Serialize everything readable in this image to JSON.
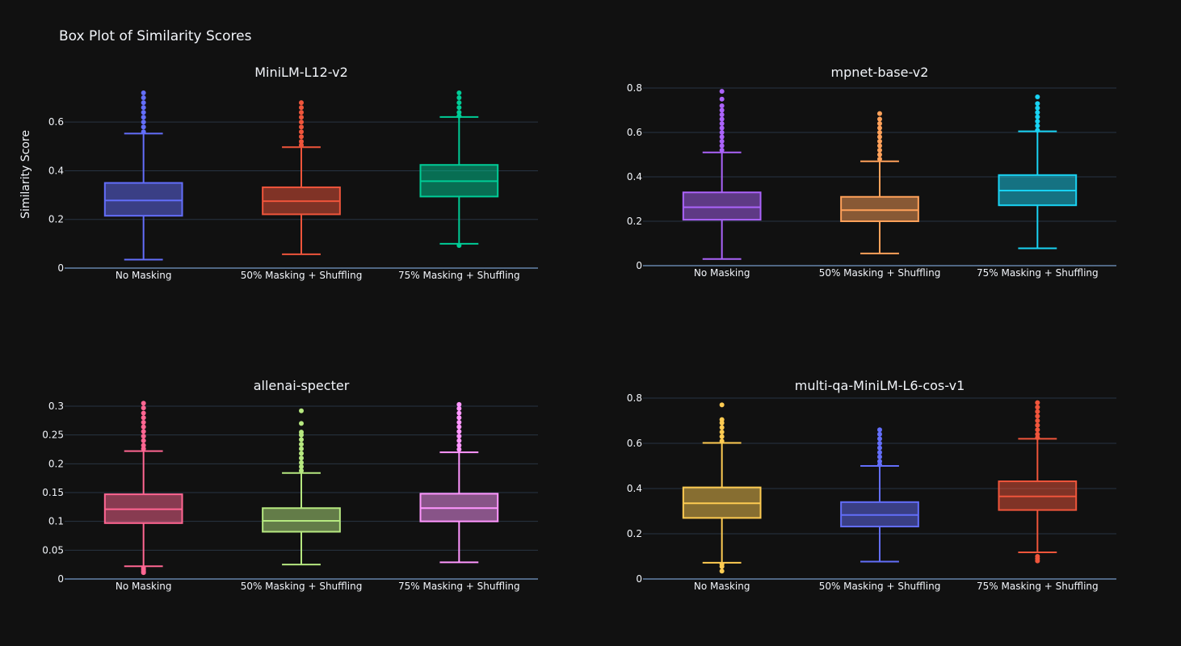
{
  "figure": {
    "title": "Box Plot of Similarity Scores",
    "ylabel": "Similarity Score",
    "categories": [
      "No Masking",
      "50% Masking + Shuffling",
      "75% Masking + Shuffling"
    ]
  },
  "chart_data": [
    {
      "type": "box",
      "title": "MiniLM-L12-v2",
      "ylabel": "Similarity Score",
      "ylim": [
        0,
        0.73
      ],
      "ticks": [
        0,
        0.2,
        0.4,
        0.6
      ],
      "tick_labels": [
        "0",
        "0.2",
        "0.4",
        "0.6"
      ],
      "grid": true,
      "categories": [
        "No Masking",
        "50% Masking + Shuffling",
        "75% Masking + Shuffling"
      ],
      "series": [
        {
          "color": "#636efa",
          "min": 0.035,
          "q1": 0.215,
          "median": 0.278,
          "q3": 0.35,
          "max": 0.553,
          "outliers_low": [],
          "outliers_high": [
            0.56,
            0.58,
            0.6,
            0.62,
            0.64,
            0.66,
            0.68,
            0.7,
            0.72
          ]
        },
        {
          "color": "#ef553b",
          "min": 0.057,
          "q1": 0.221,
          "median": 0.275,
          "q3": 0.332,
          "max": 0.497,
          "outliers_low": [],
          "outliers_high": [
            0.505,
            0.52,
            0.54,
            0.56,
            0.58,
            0.6,
            0.62,
            0.64,
            0.66,
            0.68
          ]
        },
        {
          "color": "#00cc96",
          "min": 0.1,
          "q1": 0.294,
          "median": 0.357,
          "q3": 0.424,
          "max": 0.621,
          "outliers_low": [
            0.093
          ],
          "outliers_high": [
            0.625,
            0.64,
            0.66,
            0.68,
            0.7,
            0.72
          ]
        }
      ]
    },
    {
      "type": "box",
      "title": "mpnet-base-v2",
      "ylim": [
        0,
        0.8
      ],
      "ticks": [
        0,
        0.2,
        0.4,
        0.6,
        0.8
      ],
      "tick_labels": [
        "0",
        "0.2",
        "0.4",
        "0.6",
        "0.8"
      ],
      "grid": true,
      "categories": [
        "No Masking",
        "50% Masking + Shuffling",
        "75% Masking + Shuffling"
      ],
      "series": [
        {
          "color": "#ab63fa",
          "min": 0.03,
          "q1": 0.207,
          "median": 0.263,
          "q3": 0.33,
          "max": 0.51,
          "outliers_low": [],
          "outliers_high": [
            0.52,
            0.54,
            0.56,
            0.58,
            0.6,
            0.62,
            0.64,
            0.66,
            0.68,
            0.7,
            0.72,
            0.75,
            0.785
          ]
        },
        {
          "color": "#ffa15a",
          "min": 0.055,
          "q1": 0.2,
          "median": 0.25,
          "q3": 0.31,
          "max": 0.47,
          "outliers_low": [],
          "outliers_high": [
            0.48,
            0.5,
            0.52,
            0.54,
            0.56,
            0.58,
            0.6,
            0.62,
            0.64,
            0.66,
            0.685
          ]
        },
        {
          "color": "#19d3f3",
          "min": 0.078,
          "q1": 0.272,
          "median": 0.338,
          "q3": 0.408,
          "max": 0.605,
          "outliers_low": [],
          "outliers_high": [
            0.61,
            0.63,
            0.65,
            0.67,
            0.69,
            0.71,
            0.73,
            0.76
          ]
        }
      ]
    },
    {
      "type": "box",
      "title": "allenai-specter",
      "ylim": [
        0,
        0.3
      ],
      "ticks": [
        0,
        0.05,
        0.1,
        0.15,
        0.2,
        0.25,
        0.3
      ],
      "tick_labels": [
        "0",
        "0.05",
        "0.1",
        "0.15",
        "0.2",
        "0.25",
        "0.3"
      ],
      "grid": true,
      "categories": [
        "No Masking",
        "50% Masking + Shuffling",
        "75% Masking + Shuffling"
      ],
      "series": [
        {
          "color": "#ff6692",
          "min": 0.022,
          "q1": 0.097,
          "median": 0.121,
          "q3": 0.147,
          "max": 0.222,
          "outliers_low": [
            0.019,
            0.016,
            0.013,
            0.011
          ],
          "outliers_high": [
            0.226,
            0.232,
            0.24,
            0.248,
            0.256,
            0.264,
            0.272,
            0.28,
            0.288,
            0.297,
            0.305
          ]
        },
        {
          "color": "#b6e880",
          "min": 0.025,
          "q1": 0.082,
          "median": 0.101,
          "q3": 0.123,
          "max": 0.184,
          "outliers_low": [],
          "outliers_high": [
            0.188,
            0.195,
            0.202,
            0.21,
            0.218,
            0.226,
            0.234,
            0.242,
            0.25,
            0.255,
            0.27,
            0.292
          ]
        },
        {
          "color": "#ff97ff",
          "min": 0.029,
          "q1": 0.1,
          "median": 0.123,
          "q3": 0.148,
          "max": 0.22,
          "outliers_low": [],
          "outliers_high": [
            0.225,
            0.232,
            0.24,
            0.248,
            0.256,
            0.264,
            0.272,
            0.28,
            0.288,
            0.296,
            0.303
          ]
        }
      ]
    },
    {
      "type": "box",
      "title": "multi-qa-MiniLM-L6-cos-v1",
      "ylim": [
        0,
        0.8
      ],
      "ticks": [
        0,
        0.2,
        0.4,
        0.6,
        0.8
      ],
      "tick_labels": [
        "0",
        "0.2",
        "0.4",
        "0.6",
        "0.8"
      ],
      "grid": true,
      "categories": [
        "No Masking",
        "50% Masking + Shuffling",
        "75% Masking + Shuffling"
      ],
      "series": [
        {
          "color": "#fecb52",
          "min": 0.072,
          "q1": 0.27,
          "median": 0.335,
          "q3": 0.405,
          "max": 0.602,
          "outliers_low": [
            0.065,
            0.055,
            0.035
          ],
          "outliers_high": [
            0.61,
            0.63,
            0.65,
            0.67,
            0.69,
            0.705,
            0.77
          ]
        },
        {
          "color": "#636efa",
          "min": 0.077,
          "q1": 0.232,
          "median": 0.283,
          "q3": 0.34,
          "max": 0.5,
          "outliers_low": [],
          "outliers_high": [
            0.505,
            0.52,
            0.54,
            0.56,
            0.58,
            0.6,
            0.62,
            0.64,
            0.66
          ]
        },
        {
          "color": "#ef553b",
          "min": 0.118,
          "q1": 0.305,
          "median": 0.365,
          "q3": 0.432,
          "max": 0.62,
          "outliers_low": [
            0.1,
            0.09,
            0.08
          ],
          "outliers_high": [
            0.625,
            0.64,
            0.66,
            0.68,
            0.7,
            0.72,
            0.74,
            0.76,
            0.78
          ]
        }
      ]
    }
  ]
}
